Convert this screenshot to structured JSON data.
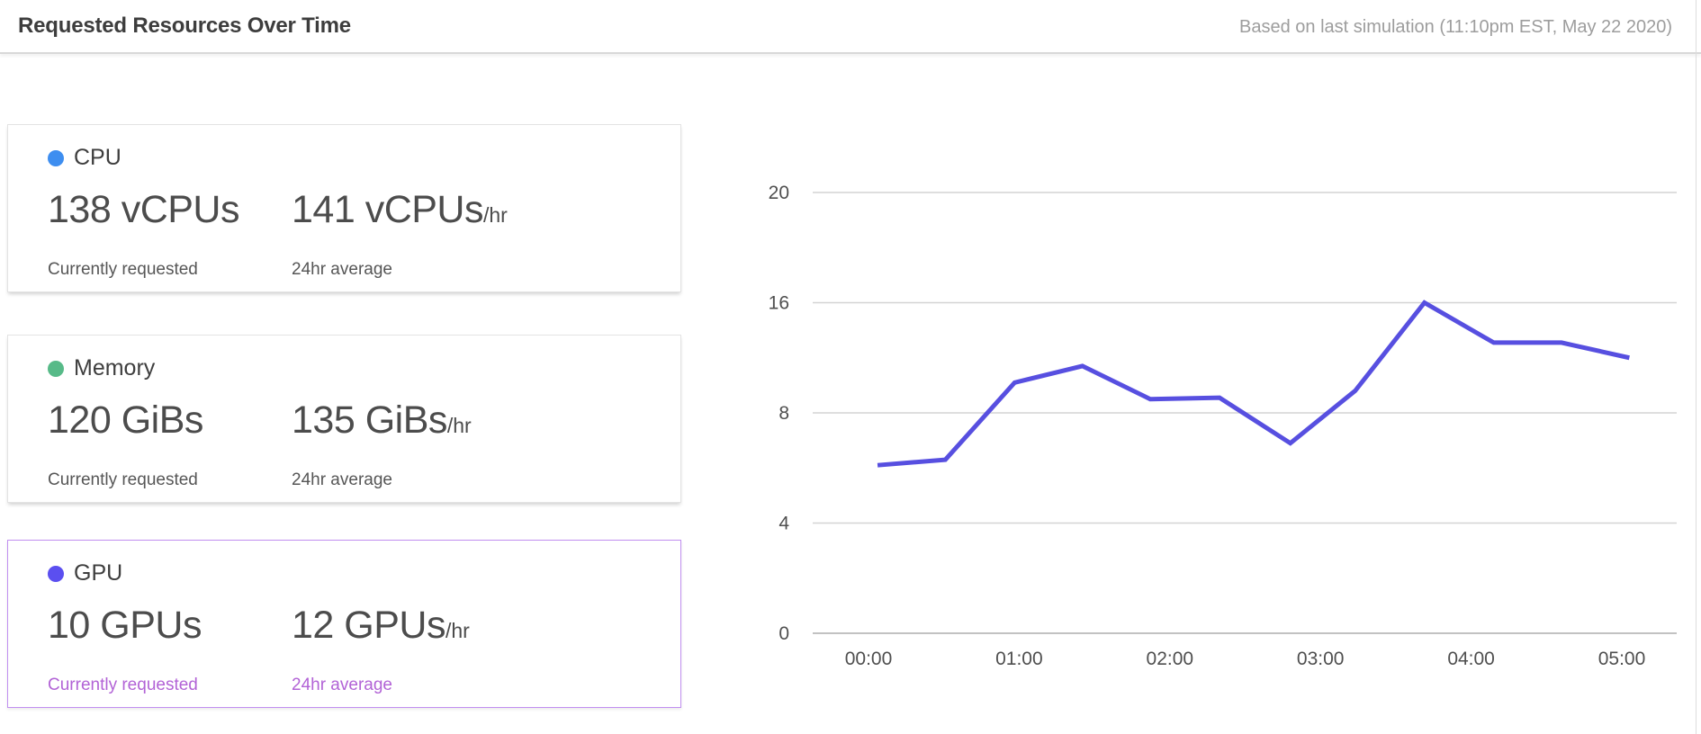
{
  "header": {
    "title": "Requested Resources Over Time",
    "subtitle": "Based on last simulation (11:10pm EST, May 22 2020)"
  },
  "cards": [
    {
      "id": "cpu",
      "label": "CPU",
      "color": "#3e8ef0",
      "selected": false,
      "current": {
        "value": "138 vCPUs",
        "suffix": "",
        "caption": "Currently requested"
      },
      "average": {
        "value": "141 vCPUs",
        "suffix": "/hr",
        "caption": "24hr average"
      }
    },
    {
      "id": "memory",
      "label": "Memory",
      "color": "#57ba88",
      "selected": false,
      "current": {
        "value": "120 GiBs",
        "suffix": "",
        "caption": "Currently requested"
      },
      "average": {
        "value": "135 GiBs",
        "suffix": "/hr",
        "caption": "24hr average"
      }
    },
    {
      "id": "gpu",
      "label": "GPU",
      "color": "#5b4ff0",
      "selected": true,
      "current": {
        "value": "10 GPUs",
        "suffix": "",
        "caption": "Currently requested"
      },
      "average": {
        "value": "12 GPUs",
        "suffix": "/hr",
        "caption": "24hr average"
      }
    }
  ],
  "chart_data": {
    "type": "line",
    "title": "",
    "legend": "none",
    "grid": "horizontal",
    "x_tick_labels": [
      "00:00",
      "01:00",
      "02:00",
      "03:00",
      "04:00",
      "05:00"
    ],
    "x_tick_hours": [
      0,
      1,
      2,
      3,
      4,
      5
    ],
    "y_tick_labels": [
      0,
      4,
      8,
      16,
      20
    ],
    "y_ticks_equally_spaced": true,
    "ylim_note": "gridlines labeled 0,4,8,16,20 are drawn at equal vertical intervals",
    "series": [
      {
        "name": "GPU requested",
        "color": "#574fe0",
        "x_hours": [
          0.06,
          0.51,
          0.97,
          1.42,
          1.87,
          2.33,
          2.8,
          3.23,
          3.69,
          4.15,
          4.6,
          5.05
        ],
        "values": [
          6.1,
          6.3,
          10.2,
          11.4,
          9.0,
          9.1,
          6.9,
          9.6,
          16.0,
          13.1,
          13.1,
          12.0
        ]
      }
    ]
  },
  "accent_colors": {
    "selected_border": "#c18ff0",
    "selected_caption": "#b263d6",
    "line": "#574fe0"
  }
}
